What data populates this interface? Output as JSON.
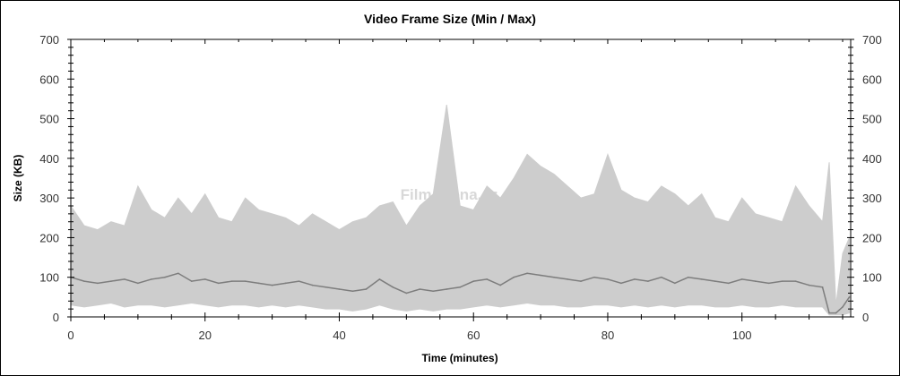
{
  "chart_data": {
    "type": "area",
    "title": "Video Frame Size (Min / Max)",
    "xlabel": "Time (minutes)",
    "ylabel": "Size (KB)",
    "xlim": [
      0,
      116.2
    ],
    "ylim": [
      0,
      700
    ],
    "x_ticks": [
      0,
      20,
      40,
      60,
      80,
      100
    ],
    "y_ticks": [
      0,
      100,
      200,
      300,
      400,
      500,
      600,
      700
    ],
    "y_axis_mirrored_right": true,
    "grid": false,
    "watermark": "Film-arena.cz",
    "colors": {
      "range": "#cdcdcd",
      "line": "#7d7d7d",
      "axis": "#000000"
    },
    "x": [
      0,
      2,
      4,
      6,
      8,
      10,
      12,
      14,
      16,
      18,
      20,
      22,
      24,
      26,
      28,
      30,
      32,
      34,
      36,
      38,
      40,
      42,
      44,
      46,
      48,
      50,
      52,
      54,
      56,
      58,
      60,
      62,
      64,
      66,
      68,
      70,
      72,
      74,
      76,
      78,
      80,
      82,
      84,
      86,
      88,
      90,
      92,
      94,
      96,
      98,
      100,
      102,
      104,
      106,
      108,
      110,
      112,
      113,
      114,
      115,
      116
    ],
    "series": [
      {
        "role": "max",
        "values": [
          280,
          230,
          220,
          240,
          230,
          330,
          270,
          250,
          300,
          260,
          310,
          250,
          240,
          300,
          270,
          260,
          250,
          230,
          260,
          240,
          220,
          240,
          250,
          280,
          290,
          230,
          280,
          310,
          535,
          280,
          270,
          330,
          300,
          350,
          410,
          380,
          360,
          330,
          300,
          310,
          410,
          320,
          300,
          290,
          330,
          310,
          280,
          310,
          250,
          240,
          300,
          260,
          250,
          240,
          330,
          280,
          240,
          390,
          30,
          160,
          200
        ]
      },
      {
        "role": "min",
        "values": [
          30,
          25,
          30,
          35,
          25,
          30,
          30,
          25,
          30,
          35,
          30,
          25,
          30,
          30,
          25,
          30,
          25,
          30,
          25,
          20,
          20,
          15,
          20,
          30,
          20,
          15,
          20,
          15,
          20,
          20,
          25,
          30,
          25,
          30,
          35,
          30,
          30,
          25,
          25,
          30,
          30,
          25,
          30,
          25,
          30,
          25,
          30,
          30,
          25,
          25,
          30,
          25,
          25,
          30,
          25,
          25,
          25,
          5,
          5,
          5,
          10
        ]
      },
      {
        "role": "line",
        "values": [
          100,
          90,
          85,
          90,
          95,
          85,
          95,
          100,
          110,
          90,
          95,
          85,
          90,
          90,
          85,
          80,
          85,
          90,
          80,
          75,
          70,
          65,
          70,
          95,
          75,
          60,
          70,
          65,
          70,
          75,
          90,
          95,
          80,
          100,
          110,
          105,
          100,
          95,
          90,
          100,
          95,
          85,
          95,
          90,
          100,
          85,
          100,
          95,
          90,
          85,
          95,
          90,
          85,
          90,
          90,
          80,
          75,
          10,
          10,
          25,
          50
        ]
      }
    ]
  }
}
